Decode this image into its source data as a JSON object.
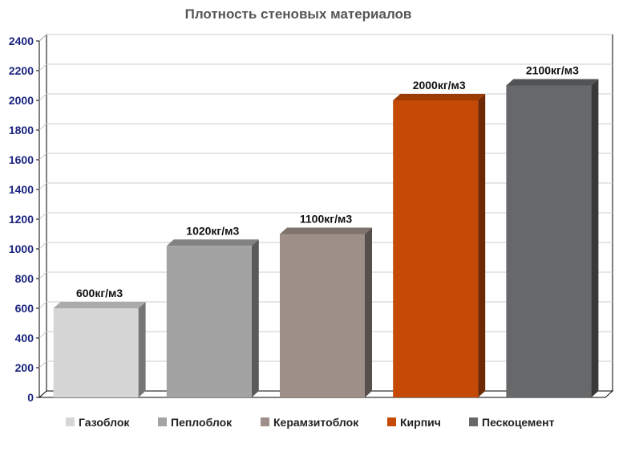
{
  "chart_data": {
    "type": "bar",
    "title": "Плотность стеновых материалов",
    "xlabel": "",
    "ylabel": "",
    "ylim": [
      0,
      2400
    ],
    "yticks": [
      "0",
      "200",
      "400",
      "600",
      "800",
      "1000",
      "1200",
      "1400",
      "1600",
      "1800",
      "2000",
      "2200",
      "2400"
    ],
    "grid": true,
    "legend_position": "bottom",
    "categories": [
      "Газоблок",
      "Пеплоблок",
      "Керамзитоблок",
      "Кирпич",
      "Пескоцемент"
    ],
    "values": [
      600,
      1020,
      1100,
      2000,
      2100
    ],
    "data_labels": [
      "600кг/м3",
      "1020кг/м3",
      "1100кг/м3",
      "2000кг/м3",
      "2100кг/м3"
    ],
    "colors": [
      "#d6d6d6",
      "#a3a3a3",
      "#9e9088",
      "#c44a06",
      "#67686a"
    ]
  }
}
